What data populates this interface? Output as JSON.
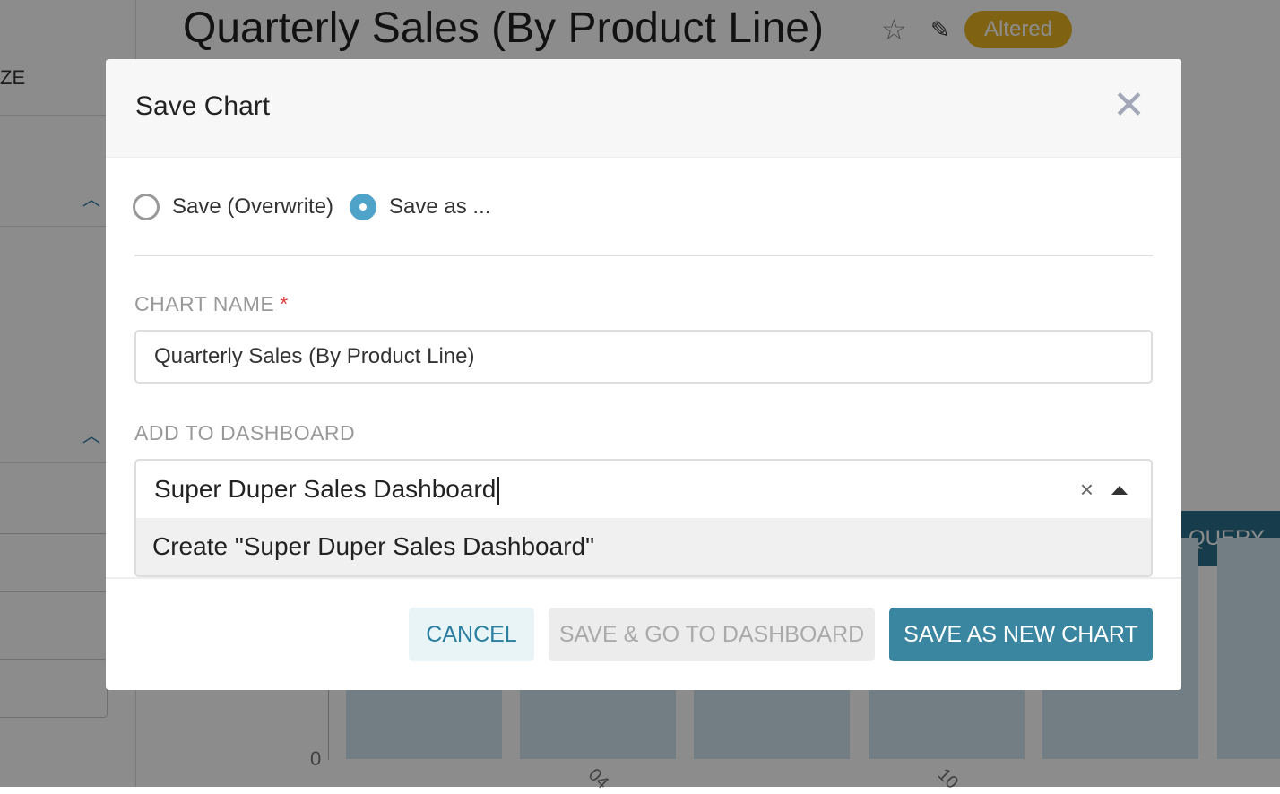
{
  "background": {
    "page_title": "Quarterly Sales (By Product Line)",
    "star_icon": "star-icon",
    "edit_icon": "edit-icon",
    "altered_badge": "Altered",
    "left_label_fragment": "ZE",
    "run_query_button_fragment": "QUERY",
    "chart_y_zero": "0",
    "chart_x_ticks": [
      "04",
      "10"
    ]
  },
  "modal": {
    "title": "Save Chart",
    "close_icon": "close-icon",
    "radio_options": [
      {
        "label": "Save (Overwrite)",
        "selected": false
      },
      {
        "label": "Save as ...",
        "selected": true
      }
    ],
    "chart_name_label": "CHART NAME",
    "required_mark": "*",
    "chart_name_value": "Quarterly Sales (By Product Line)",
    "dashboard_label": "ADD TO DASHBOARD",
    "dashboard_value": "Super Duper Sales Dashboard",
    "clear_glyph": "×",
    "dropdown_option": "Create \"Super Duper Sales Dashboard\"",
    "buttons": {
      "cancel": "CANCEL",
      "save_go": "SAVE & GO TO DASHBOARD",
      "save_new": "SAVE AS NEW CHART"
    }
  },
  "colors": {
    "primary": "#3a86a1",
    "radio_selected": "#4fa3c8",
    "badge": "#e8b522"
  }
}
